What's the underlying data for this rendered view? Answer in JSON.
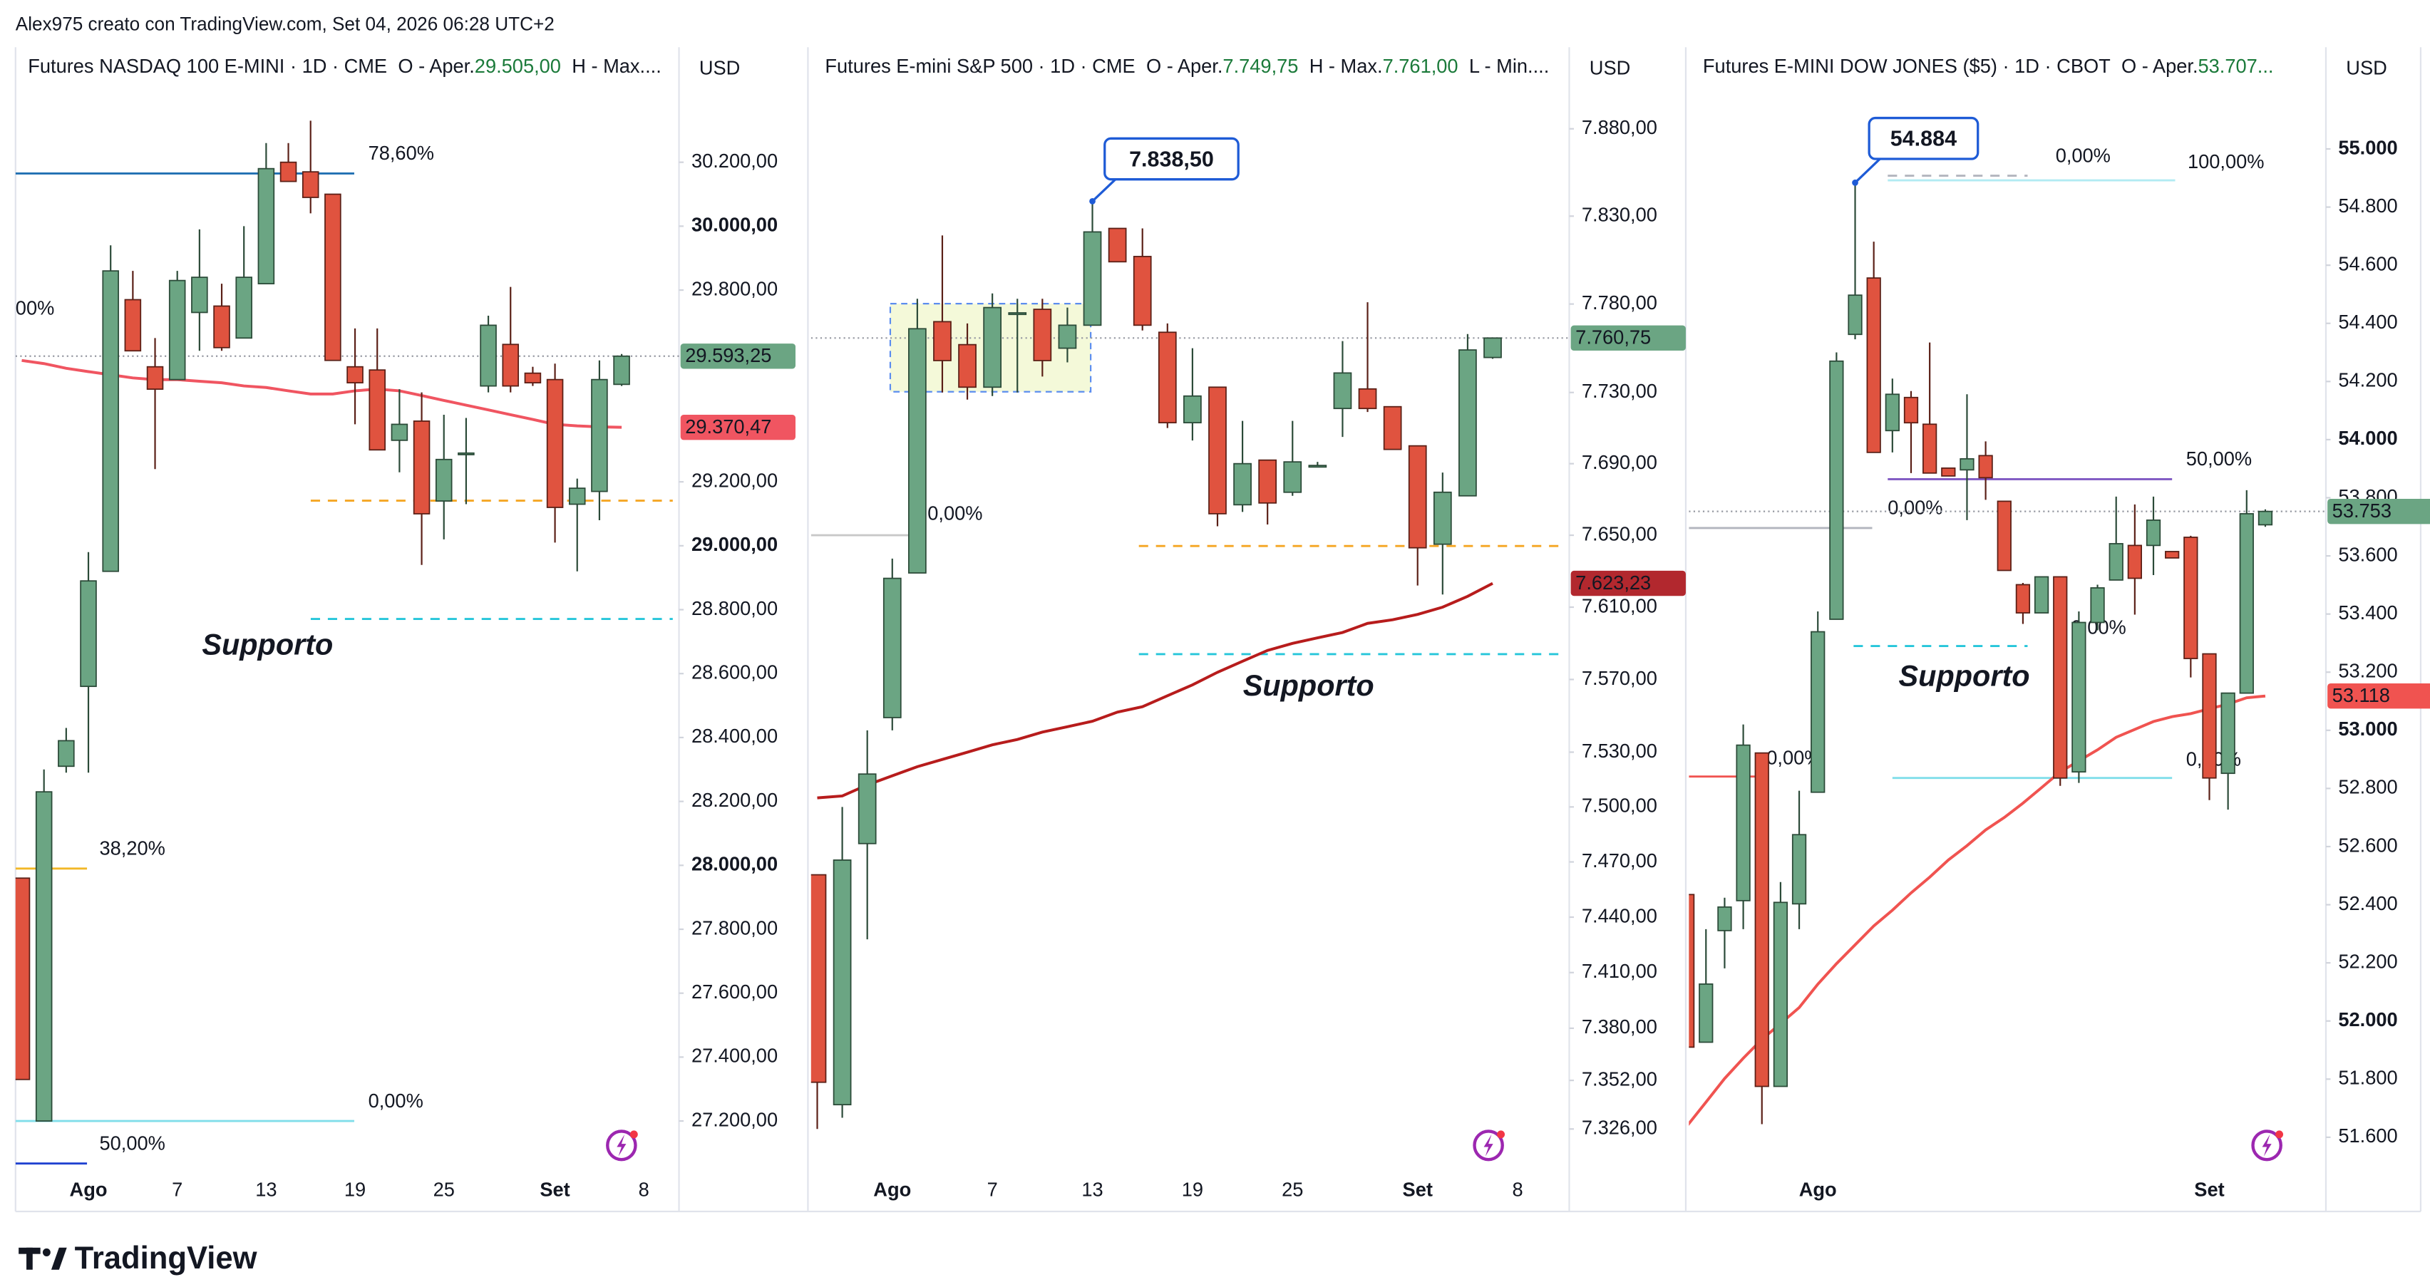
{
  "top_note": "Alex975 creato con TradingView.com, Set 04, 2026 06:28 UTC+2",
  "logo": "TradingView",
  "chart_data": [
    {
      "type": "candlestick",
      "header": {
        "title": "Futures NASDAQ 100 E-MINI · 1D · CME",
        "items": [
          {
            "key": "O - Aper.",
            "value": "29.505,00"
          },
          {
            "key": "H - Max...."
          }
        ]
      },
      "currency": "USD",
      "up_color": "#6ba583",
      "down_color": "#e0533f",
      "ylim": [
        27040,
        30560
      ],
      "yticks": [
        {
          "value": 30200,
          "label": "30.200,00"
        },
        {
          "value": 30000,
          "label": "30.000,00",
          "bold": true
        },
        {
          "value": 29800,
          "label": "29.800,00"
        },
        {
          "value": 29200,
          "label": "29.200,00"
        },
        {
          "value": 29000,
          "label": "29.000,00",
          "bold": true
        },
        {
          "value": 28800,
          "label": "28.800,00"
        },
        {
          "value": 28600,
          "label": "28.600,00"
        },
        {
          "value": 28400,
          "label": "28.400,00"
        },
        {
          "value": 28200,
          "label": "28.200,00"
        },
        {
          "value": 28000,
          "label": "28.000,00",
          "bold": true
        },
        {
          "value": 27800,
          "label": "27.800,00"
        },
        {
          "value": 27600,
          "label": "27.600,00"
        },
        {
          "value": 27400,
          "label": "27.400,00"
        },
        {
          "value": 27200,
          "label": "27.200,00"
        }
      ],
      "categories": [
        null,
        null,
        null,
        "Ago",
        null,
        null,
        null,
        "7",
        null,
        null,
        null,
        "13",
        null,
        null,
        null,
        "19",
        null,
        null,
        null,
        "25",
        null,
        null,
        null,
        null,
        "Set",
        null,
        null,
        null,
        "8"
      ],
      "ohlc": [
        [
          27960,
          27960,
          27330,
          27330
        ],
        [
          27200,
          28300,
          27200,
          28230
        ],
        [
          28310,
          28430,
          28290,
          28390
        ],
        [
          28560,
          28980,
          28290,
          28890
        ],
        [
          28920,
          29940,
          28920,
          29860
        ],
        [
          29770,
          29860,
          29610,
          29610
        ],
        [
          29560,
          29650,
          29240,
          29490
        ],
        [
          29520,
          29860,
          29520,
          29830
        ],
        [
          29730,
          29990,
          29610,
          29840
        ],
        [
          29750,
          29820,
          29610,
          29620
        ],
        [
          29650,
          30000,
          29650,
          29840
        ],
        [
          29820,
          30260,
          29820,
          30180
        ],
        [
          30200,
          30260,
          30140,
          30140
        ],
        [
          30170,
          30330,
          30040,
          30090
        ],
        [
          30100,
          30100,
          29580,
          29580
        ],
        [
          29560,
          29680,
          29380,
          29510
        ],
        [
          29550,
          29680,
          29300,
          29300
        ],
        [
          29330,
          29490,
          29230,
          29380
        ],
        [
          29390,
          29480,
          28940,
          29100
        ],
        [
          29140,
          29410,
          29020,
          29270
        ],
        [
          29290,
          29400,
          29130,
          29290
        ],
        [
          29500,
          29720,
          29480,
          29690
        ],
        [
          29630,
          29810,
          29480,
          29500
        ],
        [
          29540,
          29560,
          29500,
          29510
        ],
        [
          29520,
          29570,
          29010,
          29120
        ],
        [
          29130,
          29210,
          28920,
          29180
        ],
        [
          29170,
          29580,
          29080,
          29520
        ],
        [
          29505,
          29600,
          29500,
          29593.25
        ],
        null
      ],
      "moving_average": {
        "color": "#f05561",
        "values": [
          29580,
          29570,
          29555,
          29545,
          29535,
          29525,
          29520,
          29520,
          29515,
          29510,
          29500,
          29495,
          29485,
          29475,
          29475,
          29485,
          29490,
          29485,
          29470,
          29455,
          29440,
          29425,
          29410,
          29395,
          29380,
          29375,
          29372,
          29370.47,
          null
        ]
      },
      "price_tags": [
        {
          "value": 29593.25,
          "label": "29.593,25",
          "color": "#6ba583"
        },
        {
          "value": 29370.47,
          "label": "29.370,47",
          "color": "#f05561"
        }
      ],
      "lines": [
        {
          "value": 30165,
          "label": "78,60%",
          "color": "#1f6fb2",
          "label_color": "#3d9ad1"
        },
        {
          "value": 27990,
          "label": "38,20%",
          "color": "#f2b827"
        },
        {
          "value": 27200,
          "label": "0,00%",
          "color": "#80deea",
          "label_color": "#b9d3d8"
        },
        {
          "value": 27067,
          "label": "50,00%",
          "color": "#1e40d0"
        },
        {
          "value": 29740,
          "label": "00%",
          "color": "#f05350"
        },
        {
          "value": 29141,
          "color": "#f5a623",
          "dash": true
        },
        {
          "value": 28771,
          "color": "#26c6da",
          "dash": true
        }
      ],
      "annotations": [
        "Supporto"
      ]
    },
    {
      "type": "candlestick",
      "log": true,
      "header": {
        "title": "Futures E-mini S&P 500 · 1D · CME",
        "items": [
          {
            "key": "O - Aper.",
            "value": "7.749,75"
          },
          {
            "key": "H - Max.",
            "value": "7.761,00"
          },
          {
            "key": "L - Min...."
          }
        ]
      },
      "currency": "USD",
      "up_color": "#6ba583",
      "down_color": "#e0533f",
      "ylim": [
        7303,
        7927
      ],
      "yticks": [
        {
          "value": 7880,
          "label": "7.880,00"
        },
        {
          "value": 7830,
          "label": "7.830,00"
        },
        {
          "value": 7780,
          "label": "7.780,00"
        },
        {
          "value": 7730,
          "label": "7.730,00"
        },
        {
          "value": 7690,
          "label": "7.690,00"
        },
        {
          "value": 7650,
          "label": "7.650,00"
        },
        {
          "value": 7610,
          "label": "7.610,00"
        },
        {
          "value": 7570,
          "label": "7.570,00"
        },
        {
          "value": 7530,
          "label": "7.530,00"
        },
        {
          "value": 7500,
          "label": "7.500,00"
        },
        {
          "value": 7470,
          "label": "7.470,00"
        },
        {
          "value": 7440,
          "label": "7.440,00"
        },
        {
          "value": 7410,
          "label": "7.410,00"
        },
        {
          "value": 7380,
          "label": "7.380,00"
        },
        {
          "value": 7352,
          "label": "7.352,00"
        },
        {
          "value": 7326,
          "label": "7.326,00"
        }
      ],
      "categories": [
        null,
        null,
        null,
        "Ago",
        null,
        null,
        null,
        "7",
        null,
        null,
        null,
        "13",
        null,
        null,
        null,
        "19",
        null,
        null,
        null,
        "25",
        null,
        null,
        null,
        null,
        "Set",
        null,
        null,
        null,
        "8"
      ],
      "ohlc": [
        [
          7463,
          7463,
          7326,
          7351
        ],
        [
          7339,
          7500,
          7332,
          7471
        ],
        [
          7480,
          7542,
          7428,
          7518
        ],
        [
          7549,
          7637,
          7542,
          7626
        ],
        [
          7629,
          7783,
          7629,
          7766
        ],
        [
          7770,
          7819,
          7730,
          7748
        ],
        [
          7757,
          7769,
          7726,
          7733
        ],
        [
          7733,
          7786,
          7728,
          7778
        ],
        [
          7775,
          7783,
          7730,
          7775
        ],
        [
          7777,
          7783,
          7739,
          7748
        ],
        [
          7755,
          7778,
          7747,
          7768
        ],
        [
          7768,
          7838.5,
          7768,
          7821
        ],
        [
          7823,
          7823,
          7804,
          7804
        ],
        [
          7807,
          7823,
          7765,
          7768
        ],
        [
          7764,
          7769,
          7710,
          7713
        ],
        [
          7713,
          7755,
          7703,
          7728
        ],
        [
          7733,
          7733,
          7655,
          7662
        ],
        [
          7667,
          7714,
          7663,
          7690
        ],
        [
          7692,
          7692,
          7656,
          7668
        ],
        [
          7674,
          7714,
          7672,
          7691
        ],
        [
          7689,
          7691,
          7688,
          7689
        ],
        [
          7721,
          7759,
          7705,
          7741
        ],
        [
          7732,
          7781,
          7719,
          7721
        ],
        [
          7722,
          7722,
          7698,
          7698
        ],
        [
          7700,
          7700,
          7622,
          7643
        ],
        [
          7645,
          7685,
          7617,
          7674
        ],
        [
          7672,
          7763,
          7672,
          7754
        ],
        [
          7749.75,
          7761,
          7749,
          7760.75
        ],
        null
      ],
      "moving_average": {
        "color": "#b71c1c",
        "values": [
          7505,
          7506,
          7512,
          7517,
          7522,
          7526,
          7530,
          7534,
          7537,
          7541,
          7544,
          7547,
          7552,
          7555,
          7561,
          7567,
          7574,
          7580,
          7586,
          7590,
          7593,
          7596,
          7601,
          7603,
          7606,
          7610,
          7616,
          7623.23,
          null
        ]
      },
      "price_tags": [
        {
          "value": 7760.75,
          "label": "7.760,75",
          "color": "#6ba583"
        },
        {
          "value": 7623.23,
          "label": "7.623,23",
          "color": "#b2282e"
        }
      ],
      "lines": [
        {
          "value": 7650,
          "label": "0,00%",
          "color": "#c8c8c8",
          "label_color": "#d0d0d0"
        },
        {
          "value": 7644,
          "color": "#f5a623",
          "dash": true
        },
        {
          "value": 7584,
          "color": "#26c6da",
          "dash": true
        }
      ],
      "callout": {
        "value": 7838.5,
        "label": "7.838,50"
      },
      "annotations": [
        "Supporto"
      ]
    },
    {
      "type": "candlestick",
      "header": {
        "title": "Futures E-MINI DOW JONES ($5) · 1D · CBOT",
        "items": [
          {
            "key": "O - Aper.",
            "value": "53.707..."
          }
        ]
      },
      "currency": "USD",
      "up_color": "#6ba583",
      "down_color": "#e0533f",
      "ylim": [
        51480,
        55350
      ],
      "yticks": [
        {
          "value": 55000,
          "label": "55.000",
          "bold": true
        },
        {
          "value": 54800,
          "label": "54.800"
        },
        {
          "value": 54600,
          "label": "54.600"
        },
        {
          "value": 54400,
          "label": "54.400"
        },
        {
          "value": 54200,
          "label": "54.200"
        },
        {
          "value": 54000,
          "label": "54.000",
          "bold": true
        },
        {
          "value": 53800,
          "label": "53.800"
        },
        {
          "value": 53600,
          "label": "53.600"
        },
        {
          "value": 53400,
          "label": "53.400"
        },
        {
          "value": 53200,
          "label": "53.200"
        },
        {
          "value": 53000,
          "label": "53.000",
          "bold": true
        },
        {
          "value": 52800,
          "label": "52.800"
        },
        {
          "value": 52600,
          "label": "52.600"
        },
        {
          "value": 52400,
          "label": "52.400"
        },
        {
          "value": 52200,
          "label": "52.200"
        },
        {
          "value": 52000,
          "label": "52.000",
          "bold": true
        },
        {
          "value": 51800,
          "label": "51.800"
        },
        {
          "value": 51600,
          "label": "51.600"
        }
      ],
      "categories": [
        null,
        null,
        null,
        null,
        null,
        null,
        null,
        "Ago",
        null,
        null,
        null,
        null,
        null,
        null,
        null,
        null,
        null,
        null,
        null,
        null,
        null,
        null,
        null,
        null,
        null,
        null,
        null,
        null,
        "Set",
        null,
        null,
        null
      ],
      "ohlc": [
        [
          52435,
          52435,
          51910,
          51910
        ],
        [
          51927,
          52316,
          51927,
          52127
        ],
        [
          52311,
          52424,
          52181,
          52392
        ],
        [
          52414,
          53020,
          52316,
          52949
        ],
        [
          52922,
          52922,
          51645,
          51775
        ],
        [
          51775,
          52478,
          51775,
          52408
        ],
        [
          52403,
          52792,
          52316,
          52641
        ],
        [
          52787,
          53409,
          52787,
          53339
        ],
        [
          53382,
          54300,
          53382,
          54270
        ],
        [
          54362,
          54884,
          54345,
          54497
        ],
        [
          54556,
          54681,
          53956,
          53956
        ],
        [
          54031,
          54210,
          53956,
          54156
        ],
        [
          54145,
          54167,
          53885,
          54058
        ],
        [
          54053,
          54334,
          53885,
          53885
        ],
        [
          53902,
          53902,
          53875,
          53875
        ],
        [
          53896,
          54156,
          53723,
          53934
        ],
        [
          53945,
          53994,
          53793,
          53869
        ],
        [
          53788,
          53788,
          53550,
          53550
        ],
        [
          53501,
          53507,
          53366,
          53404
        ],
        [
          53404,
          53528,
          53404,
          53528
        ],
        [
          53528,
          53528,
          52809,
          52836
        ],
        [
          52857,
          53409,
          52819,
          53371
        ],
        [
          53371,
          53501,
          53344,
          53490
        ],
        [
          53517,
          53804,
          53517,
          53642
        ],
        [
          53636,
          53777,
          53398,
          53523
        ],
        [
          53636,
          53804,
          53534,
          53723
        ],
        [
          53615,
          53615,
          53593,
          53593
        ],
        [
          53664,
          53669,
          53182,
          53247
        ],
        [
          53263,
          53263,
          52760,
          52836
        ],
        [
          52852,
          53128,
          52727,
          53128
        ],
        [
          53128,
          53826,
          53128,
          53745
        ],
        [
          53707,
          53760,
          53700,
          53753
        ]
      ],
      "moving_average": {
        "color": "#f05350",
        "values": [
          51640,
          51721,
          51802,
          51872,
          51937,
          51991,
          52046,
          52127,
          52197,
          52262,
          52327,
          52381,
          52441,
          52495,
          52554,
          52603,
          52657,
          52700,
          52749,
          52803,
          52857,
          52895,
          52933,
          52976,
          53003,
          53030,
          53047,
          53057,
          53074,
          53090,
          53112,
          53118
        ]
      },
      "price_tags": [
        {
          "value": 53753,
          "label": "53.753",
          "color": "#6ba583"
        },
        {
          "value": 53118,
          "label": "53.118",
          "color": "#f05350"
        }
      ],
      "lines": [
        {
          "value": 54908,
          "label": "0,00%",
          "color": "#b2b5be",
          "dash": true,
          "label_color": "#c9cbd1"
        },
        {
          "value": 54892,
          "label": "100,00%",
          "color": "#b2ebf2"
        },
        {
          "value": 53864,
          "label": "50,00%",
          "color": "#7e57c2"
        },
        {
          "value": 53696,
          "label": "0,00%",
          "color": "#b2b5be",
          "label_color": "#c9cbd1"
        },
        {
          "value": 53290,
          "color": "#26c6da",
          "dash": true
        },
        {
          "value": 53350,
          "label": "0,00%",
          "color": "#80deea"
        },
        {
          "value": 52841,
          "label": "0,00%",
          "color": "#f05350"
        },
        {
          "value": 52836,
          "label": "0,00%",
          "color": "#80deea"
        }
      ],
      "callout": {
        "value": 54884,
        "label": "54.884"
      },
      "annotations": [
        "Supporto"
      ]
    }
  ]
}
